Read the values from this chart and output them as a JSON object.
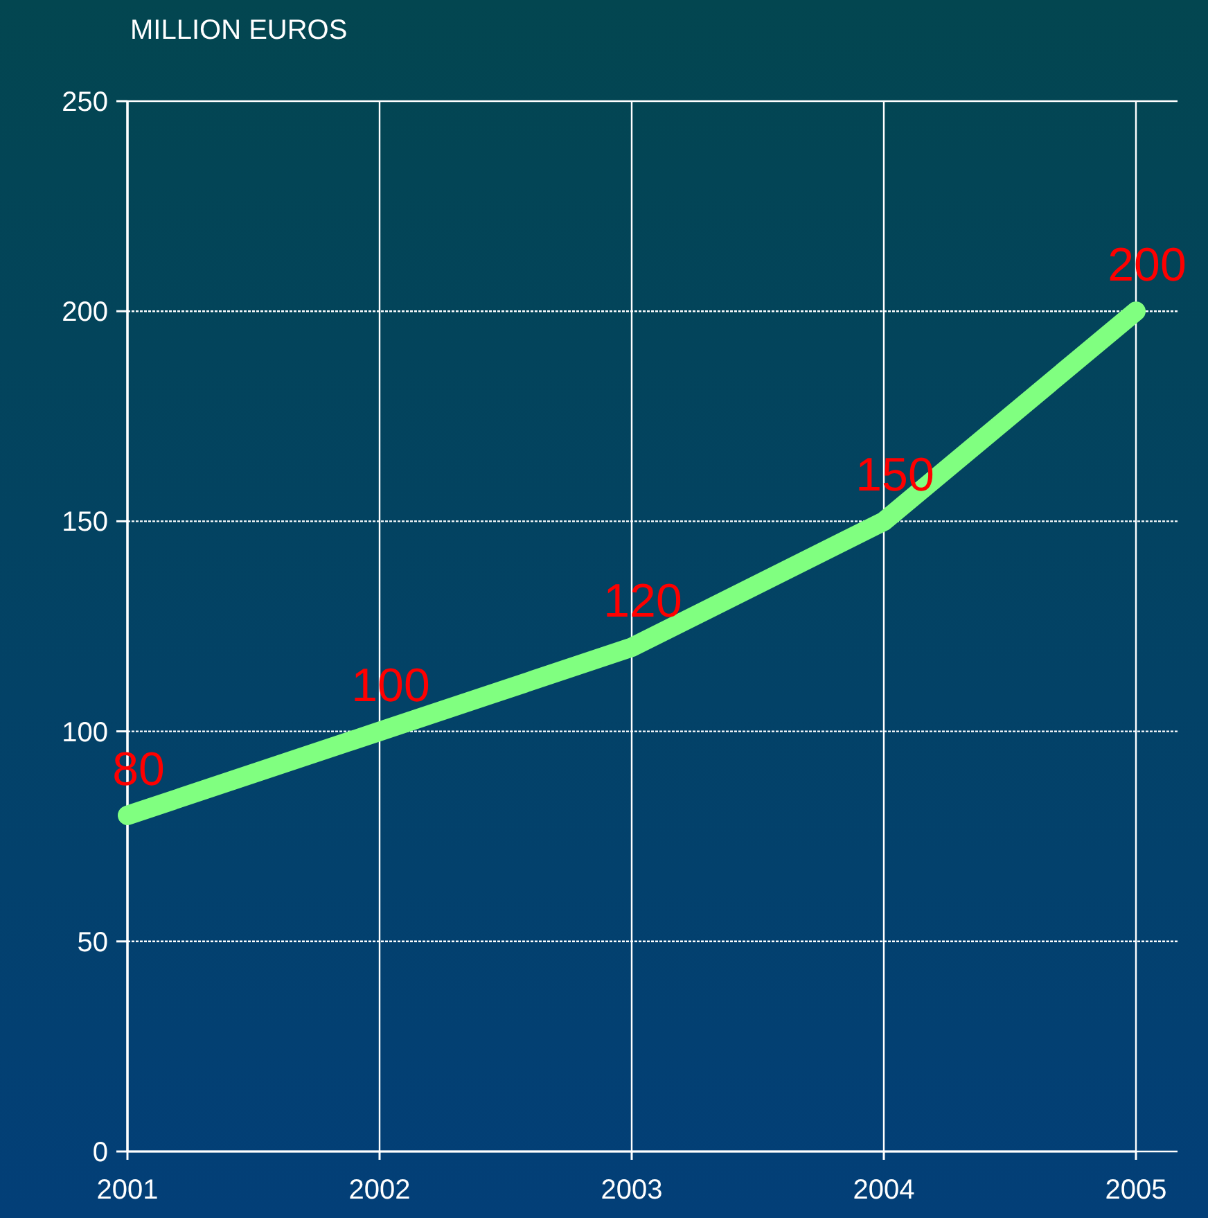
{
  "chart_data": {
    "type": "line",
    "title": "MILLION EUROS",
    "categories": [
      "2001",
      "2002",
      "2003",
      "2004",
      "2005"
    ],
    "series": [
      {
        "color": "#80ff80",
        "values": [
          80,
          100,
          120,
          150,
          200
        ]
      }
    ],
    "ylim": [
      0,
      250
    ],
    "yticks": [
      0,
      50,
      100,
      150,
      200,
      250
    ],
    "grid": true,
    "data_labels": true,
    "marker": "none",
    "line_style": "solid"
  }
}
